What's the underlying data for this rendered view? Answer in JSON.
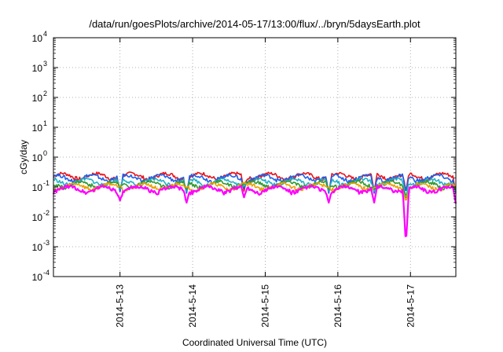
{
  "chart_data": {
    "type": "line",
    "title": "/data/run/goesPlots/archive/2014-05-17/13:00/flux/../bryn/5daysEarth.plot",
    "xlabel": "Coordinated Universal Time (UTC)",
    "ylabel": "cGy/day",
    "x_range": [
      "2014-05-12T02:00",
      "2014-05-17T15:00"
    ],
    "x_ticks": [
      "2014-5-13",
      "2014-5-14",
      "2014-5-15",
      "2014-5-16",
      "2014-5-17"
    ],
    "y_scale": "log",
    "ylim": [
      0.0001,
      10000
    ],
    "y_ticks": [
      {
        "base": "10",
        "exp": "-4"
      },
      {
        "base": "10",
        "exp": "-3"
      },
      {
        "base": "10",
        "exp": "-2"
      },
      {
        "base": "10",
        "exp": "-1"
      },
      {
        "base": "10",
        "exp": "0"
      },
      {
        "base": "10",
        "exp": "1"
      },
      {
        "base": "10",
        "exp": "2"
      },
      {
        "base": "10",
        "exp": "3"
      },
      {
        "base": "10",
        "exp": "4"
      }
    ],
    "grid": true,
    "series": [
      {
        "color": "#e8131c",
        "base": 0.235
      },
      {
        "color": "#1f5fe8",
        "base": 0.205
      },
      {
        "color": "#20b0c8",
        "base": 0.15
      },
      {
        "color": "#2f9a2f",
        "base": 0.125
      },
      {
        "color": "#e8a000",
        "base": 0.105
      },
      {
        "color": "#ff00ff",
        "base": 0.085
      }
    ],
    "dips": [
      {
        "x": "2014-05-13T00:00",
        "value": 0.035
      },
      {
        "x": "2014-05-13T22:00",
        "value": 0.03
      },
      {
        "x": "2014-05-14T17:00",
        "value": 0.045
      },
      {
        "x": "2014-05-15T21:00",
        "value": 0.03
      },
      {
        "x": "2014-05-16T12:00",
        "value": 0.03
      },
      {
        "x": "2014-05-16T22:30",
        "value": 0.0011
      },
      {
        "x": "2014-05-17T15:00",
        "value": 0.028
      }
    ]
  }
}
